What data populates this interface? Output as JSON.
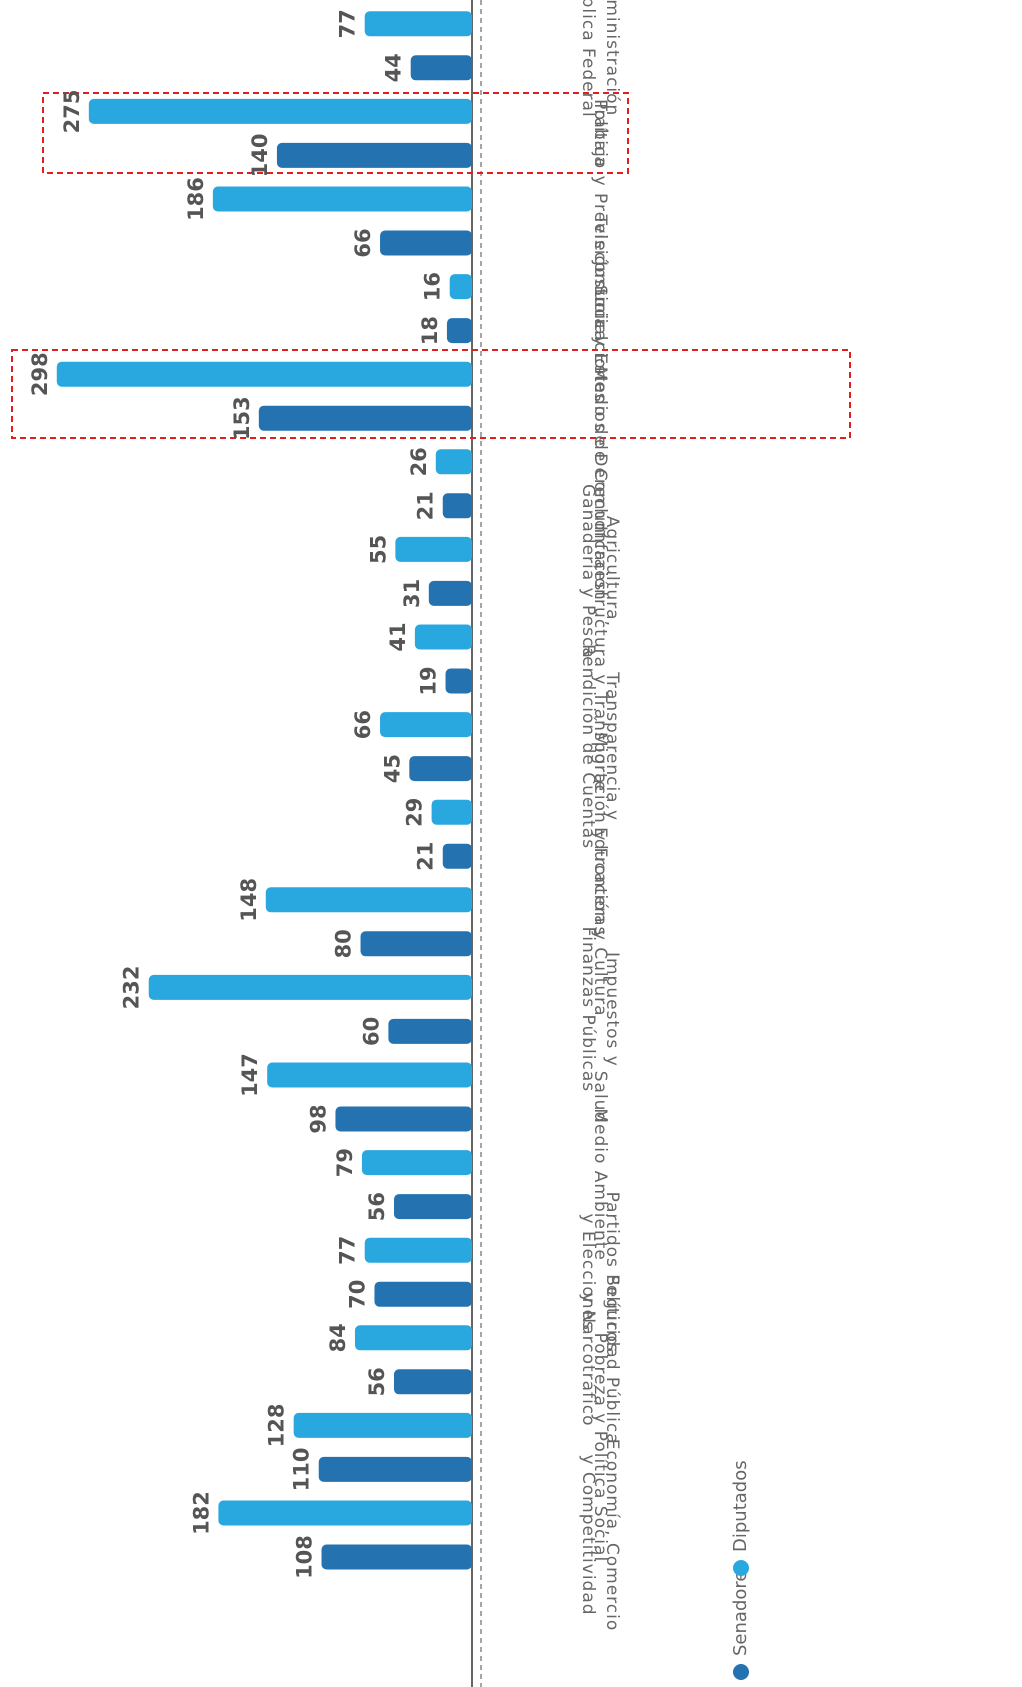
{
  "chart_data": {
    "type": "bar",
    "orientation": "horizontal",
    "categories": [
      [
        "Economía, Comercio",
        "y Competitividad"
      ],
      [
        "Pobreza y Política Social"
      ],
      [
        "Seguridad Pública",
        "y Narcotráfico"
      ],
      [
        "Partidos Políticos",
        "y Elecciones"
      ],
      [
        "Medio Ambiente"
      ],
      [
        "Salud"
      ],
      [
        "Impuestos y",
        "Finanzas Públicas"
      ],
      [
        "Educación y Cultura"
      ],
      [
        "Migración y Fronteras"
      ],
      [
        "Transparencia y",
        "Rendición de Cuentas"
      ],
      [
        "Infraestructura y Transporte"
      ],
      [
        "Agricultura,",
        "Ganadería y Pesca"
      ],
      [
        "Medios de Comunicación"
      ],
      [
        "Justicia y Estado de Derecho"
      ],
      [
        "Telecomunicaciones"
      ],
      [
        "Trabajo y Previsión Social"
      ],
      [
        "Política"
      ],
      [
        "Administración",
        "Pública Federal"
      ]
    ],
    "series": [
      {
        "name": "Senadores",
        "color": "#2472b0",
        "values": [
          108,
          110,
          56,
          70,
          56,
          98,
          60,
          80,
          21,
          45,
          19,
          31,
          21,
          153,
          18,
          66,
          140,
          44
        ]
      },
      {
        "name": "Diputados",
        "color": "#29a8e0",
        "values": [
          182,
          128,
          84,
          77,
          79,
          147,
          232,
          148,
          29,
          66,
          41,
          55,
          26,
          298,
          16,
          186,
          275,
          77
        ]
      }
    ],
    "xlim": [
      0,
      300
    ]
  }
}
